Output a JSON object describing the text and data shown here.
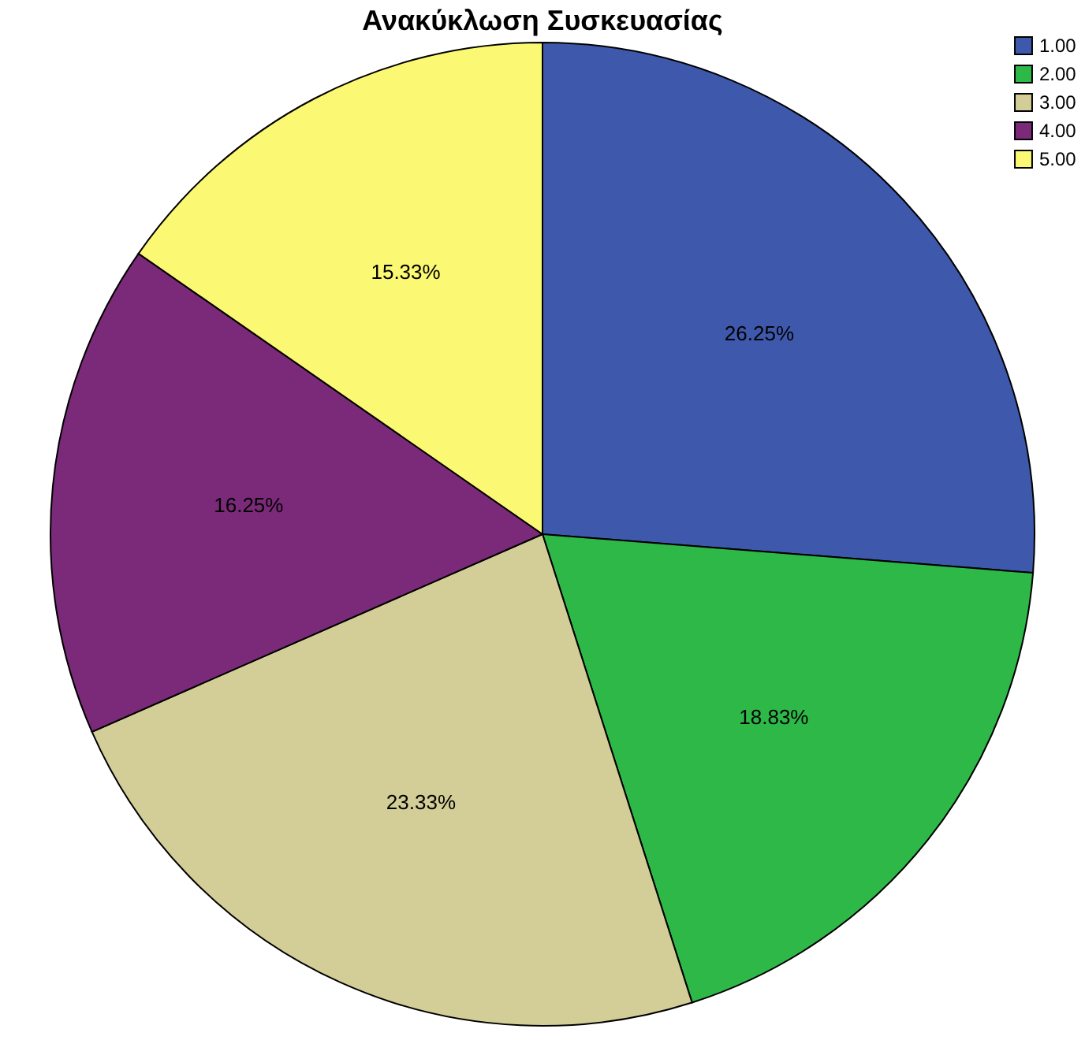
{
  "chart_data": {
    "type": "pie",
    "title": "Ανακύκλωση Συσκευασίας",
    "categories": [
      "1.00",
      "2.00",
      "3.00",
      "4.00",
      "5.00"
    ],
    "values": [
      26.25,
      18.83,
      23.33,
      16.25,
      15.33
    ],
    "value_labels": [
      "26.25%",
      "18.83%",
      "23.33%",
      "16.25%",
      "15.33%"
    ],
    "colors": [
      "#3e58ac",
      "#2eb848",
      "#d3ce97",
      "#7b2a79",
      "#fbf873"
    ],
    "legend": "top right"
  }
}
